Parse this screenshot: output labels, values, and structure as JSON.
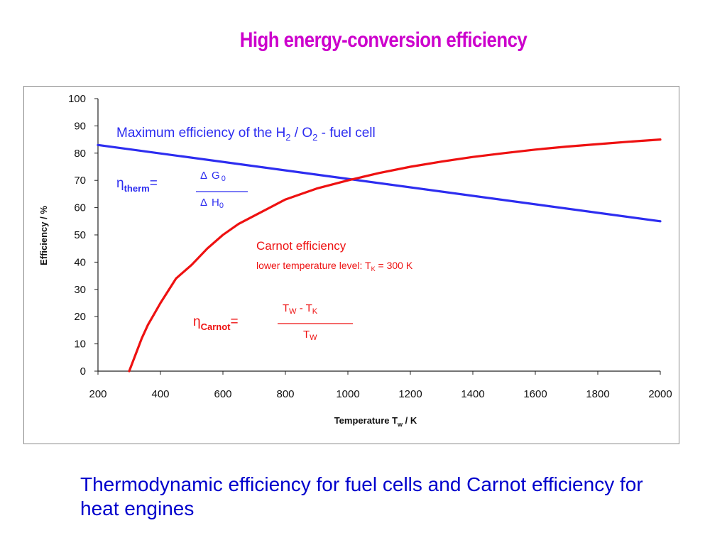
{
  "slide": {
    "title": "High energy-conversion efficiency",
    "caption": "Thermodynamic efficiency for fuel cells and Carnot efficiency for heat engines"
  },
  "colors": {
    "title": "#cc00cc",
    "caption": "#0000cc",
    "fuel_cell": "#2d2df0",
    "carnot": "#ee1111",
    "axis": "#222222"
  },
  "chart_data": {
    "type": "line",
    "xlabel_main": "Temperature T",
    "xlabel_sub": "w",
    "xlabel_unit": " / K",
    "ylabel": "Efficiency / %",
    "xlim": [
      200,
      2000
    ],
    "ylim": [
      0,
      100
    ],
    "xticks": [
      200,
      400,
      600,
      800,
      1000,
      1200,
      1400,
      1600,
      1800,
      2000
    ],
    "yticks": [
      0,
      10,
      20,
      30,
      40,
      50,
      60,
      70,
      80,
      90,
      100
    ],
    "grid": false,
    "series": [
      {
        "key": "fuel_cell",
        "x": [
          200,
          2000
        ],
        "y": [
          83,
          55
        ]
      },
      {
        "key": "carnot",
        "x": [
          300,
          320,
          340,
          360,
          380,
          400,
          450,
          500,
          550,
          600,
          650,
          700,
          800,
          900,
          1000,
          1100,
          1200,
          1300,
          1400,
          1500,
          1600,
          1700,
          1800,
          1900,
          2000
        ],
        "y": [
          0,
          6,
          12,
          17,
          21,
          25,
          34,
          39,
          45,
          50,
          54,
          57,
          63,
          67,
          70,
          72.7,
          75,
          76.9,
          78.6,
          80,
          81.3,
          82.4,
          83.3,
          84.2,
          85
        ]
      }
    ],
    "annotations": {
      "fuel_cell_label": {
        "pre": "Maximum efficiency of the H",
        "sub1": "2",
        "mid": " / O",
        "sub2": "2",
        "post": " - fuel cell"
      },
      "eta_therm": {
        "eta": "η",
        "sub": "therm",
        "eq": "=",
        "num_delta": "Δ",
        "num_var": "G",
        "num_sub": "0",
        "den_delta": "Δ",
        "den_var": "H",
        "den_sub": "0"
      },
      "carnot_label": "Carnot efficiency",
      "carnot_note": {
        "pre": "lower temperature level: T",
        "sub": "K",
        "post": " = 300 K"
      },
      "eta_carnot": {
        "eta": "η",
        "sub": "Carnot",
        "eq": "=",
        "num_T1": "T",
        "num_sub1": "W",
        "num_minus": " - ",
        "num_T2": "T",
        "num_sub2": "K",
        "den_T": "T",
        "den_sub": "W"
      }
    }
  }
}
